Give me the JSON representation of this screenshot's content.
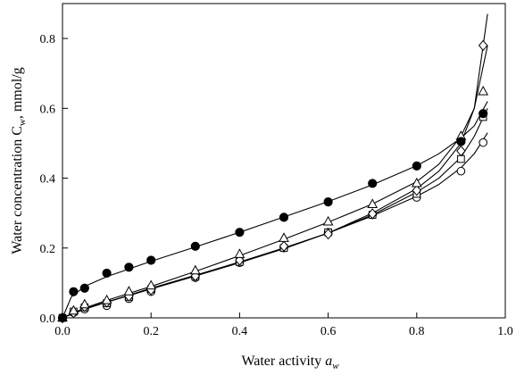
{
  "chart_data": {
    "type": "scatter",
    "xlabel": "Water activity",
    "xlabel_symbol": "a",
    "xlabel_sub": "w",
    "ylabel": "Water concentration C",
    "ylabel_sub": "w",
    "ylabel_unit": ", mmol/g",
    "xlim": [
      0.0,
      1.0
    ],
    "ylim": [
      0.0,
      0.9
    ],
    "xticks": [
      "0.0",
      "0.2",
      "0.4",
      "0.6",
      "0.8",
      "1.0"
    ],
    "yticks": [
      "0.0",
      "0.2",
      "0.4",
      "0.6",
      "0.8"
    ],
    "grid": false,
    "series": [
      {
        "marker": "filled-circle",
        "x": [
          0.0,
          0.025,
          0.05,
          0.1,
          0.15,
          0.2,
          0.3,
          0.4,
          0.5,
          0.6,
          0.7,
          0.8,
          0.9,
          0.95
        ],
        "y": [
          0.0,
          0.075,
          0.085,
          0.128,
          0.145,
          0.165,
          0.205,
          0.245,
          0.288,
          0.332,
          0.385,
          0.435,
          0.505,
          0.585
        ],
        "fit_x": [
          0.0,
          0.02,
          0.05,
          0.1,
          0.2,
          0.3,
          0.4,
          0.5,
          0.6,
          0.7,
          0.8,
          0.85,
          0.9,
          0.93,
          0.96
        ],
        "fit_y": [
          0.0,
          0.06,
          0.09,
          0.118,
          0.162,
          0.203,
          0.245,
          0.289,
          0.333,
          0.381,
          0.436,
          0.47,
          0.515,
          0.55,
          0.62
        ]
      },
      {
        "marker": "open-triangle",
        "x": [
          0.0,
          0.025,
          0.05,
          0.1,
          0.15,
          0.2,
          0.3,
          0.4,
          0.5,
          0.6,
          0.7,
          0.8,
          0.9,
          0.95
        ],
        "y": [
          0.0,
          0.02,
          0.038,
          0.05,
          0.075,
          0.092,
          0.135,
          0.182,
          0.228,
          0.275,
          0.325,
          0.385,
          0.52,
          0.648
        ],
        "fit_x": [
          0.0,
          0.05,
          0.1,
          0.2,
          0.3,
          0.4,
          0.5,
          0.6,
          0.7,
          0.8,
          0.85,
          0.9,
          0.93,
          0.96
        ],
        "fit_y": [
          0.0,
          0.028,
          0.05,
          0.09,
          0.133,
          0.178,
          0.225,
          0.274,
          0.326,
          0.39,
          0.44,
          0.52,
          0.6,
          0.78
        ]
      },
      {
        "marker": "open-diamond",
        "x": [
          0.0,
          0.025,
          0.05,
          0.1,
          0.15,
          0.2,
          0.3,
          0.4,
          0.5,
          0.6,
          0.7,
          0.8,
          0.9,
          0.95
        ],
        "y": [
          0.0,
          0.015,
          0.032,
          0.045,
          0.062,
          0.08,
          0.12,
          0.165,
          0.205,
          0.24,
          0.298,
          0.365,
          0.478,
          0.78
        ],
        "fit_x": [
          0.0,
          0.05,
          0.1,
          0.2,
          0.3,
          0.4,
          0.5,
          0.6,
          0.7,
          0.8,
          0.85,
          0.9,
          0.93,
          0.96
        ],
        "fit_y": [
          0.0,
          0.028,
          0.045,
          0.085,
          0.122,
          0.16,
          0.2,
          0.243,
          0.3,
          0.37,
          0.42,
          0.5,
          0.6,
          0.87
        ]
      },
      {
        "marker": "open-square",
        "x": [
          0.0,
          0.025,
          0.05,
          0.1,
          0.15,
          0.2,
          0.3,
          0.4,
          0.5,
          0.6,
          0.7,
          0.8,
          0.9,
          0.95
        ],
        "y": [
          0.0,
          0.018,
          0.03,
          0.042,
          0.06,
          0.082,
          0.118,
          0.16,
          0.2,
          0.245,
          0.295,
          0.355,
          0.455,
          0.575
        ],
        "fit_x": [
          0.0,
          0.05,
          0.1,
          0.2,
          0.3,
          0.4,
          0.5,
          0.6,
          0.7,
          0.8,
          0.85,
          0.9,
          0.93,
          0.96
        ],
        "fit_y": [
          0.0,
          0.025,
          0.045,
          0.083,
          0.12,
          0.158,
          0.198,
          0.243,
          0.295,
          0.36,
          0.4,
          0.46,
          0.52,
          0.6
        ]
      },
      {
        "marker": "open-circle",
        "x": [
          0.0,
          0.025,
          0.05,
          0.1,
          0.15,
          0.2,
          0.3,
          0.4,
          0.5,
          0.6,
          0.7,
          0.8,
          0.9,
          0.95
        ],
        "y": [
          0.0,
          0.015,
          0.025,
          0.035,
          0.055,
          0.075,
          0.115,
          0.158,
          0.2,
          0.245,
          0.295,
          0.345,
          0.42,
          0.502
        ],
        "fit_x": [
          0.0,
          0.05,
          0.1,
          0.2,
          0.3,
          0.4,
          0.5,
          0.6,
          0.7,
          0.8,
          0.85,
          0.9,
          0.93,
          0.96
        ],
        "fit_y": [
          0.0,
          0.025,
          0.045,
          0.083,
          0.12,
          0.158,
          0.2,
          0.243,
          0.292,
          0.348,
          0.382,
          0.43,
          0.47,
          0.53
        ]
      }
    ]
  }
}
